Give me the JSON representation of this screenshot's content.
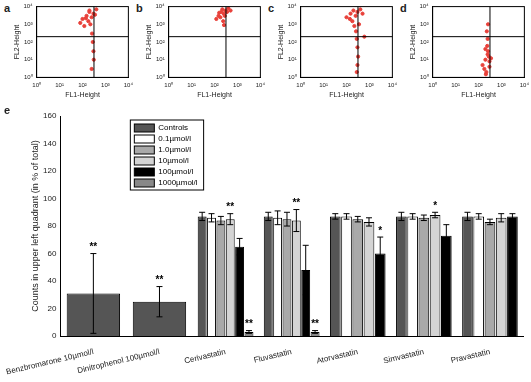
{
  "chart_data": [
    {
      "type": "scatter",
      "title": "a",
      "x_label": "FL1-Height",
      "y_label": "FL2-Height",
      "log": true,
      "grid": false,
      "color": "#e8413a",
      "xlim": [
        1,
        10000
      ],
      "ylim": [
        1,
        10000
      ],
      "xticks": [
        {
          "value": 1,
          "label": "10⁰"
        },
        {
          "value": 10,
          "label": "10¹"
        },
        {
          "value": 100,
          "label": "10²"
        },
        {
          "value": 1000,
          "label": "10³"
        },
        {
          "value": 10000,
          "label": "10⁴"
        }
      ],
      "yticks": [
        {
          "value": 1,
          "label": "10⁰"
        },
        {
          "value": 10,
          "label": "10¹"
        },
        {
          "value": 100,
          "label": "10²"
        },
        {
          "value": 1000,
          "label": "10³"
        },
        {
          "value": 10000,
          "label": "10⁴"
        }
      ],
      "gate": {
        "x": 316,
        "y": 200
      },
      "x": [
        100,
        150,
        200,
        250,
        300,
        180,
        120,
        220,
        260,
        280,
        300,
        310,
        250,
        200,
        400,
        350,
        80,
        140
      ],
      "y": [
        2000,
        3000,
        5000,
        2500,
        4000,
        1500,
        800,
        1000,
        300,
        100,
        30,
        10,
        3,
        6000,
        7000,
        3500,
        1200,
        2200
      ]
    },
    {
      "type": "scatter",
      "title": "b",
      "x_label": "FL1-Height",
      "y_label": "FL2-Height",
      "log": true,
      "grid": false,
      "color": "#e8413a",
      "xlim": [
        1,
        10000
      ],
      "ylim": [
        1,
        10000
      ],
      "xticks": [
        {
          "value": 1,
          "label": "10⁰"
        },
        {
          "value": 10,
          "label": "10¹"
        },
        {
          "value": 100,
          "label": "10²"
        },
        {
          "value": 1000,
          "label": "10³"
        },
        {
          "value": 10000,
          "label": "10⁴"
        }
      ],
      "yticks": [
        {
          "value": 1,
          "label": "10⁰"
        },
        {
          "value": 10,
          "label": "10¹"
        },
        {
          "value": 100,
          "label": "10²"
        },
        {
          "value": 1000,
          "label": "10³"
        },
        {
          "value": 10000,
          "label": "10⁴"
        }
      ],
      "gate": {
        "x": 316,
        "y": 200
      },
      "x": [
        150,
        200,
        250,
        300,
        180,
        220,
        400,
        350,
        120,
        280,
        500,
        160,
        240,
        260
      ],
      "y": [
        3000,
        5000,
        4000,
        6000,
        2500,
        7000,
        8000,
        5000,
        2000,
        3000,
        6000,
        4500,
        1500,
        900
      ]
    },
    {
      "type": "scatter",
      "title": "c",
      "x_label": "FL1-Height",
      "y_label": "FL2-Height",
      "log": true,
      "grid": false,
      "color": "#e8413a",
      "xlim": [
        1,
        10000
      ],
      "ylim": [
        1,
        10000
      ],
      "xticks": [
        {
          "value": 1,
          "label": "10⁰"
        },
        {
          "value": 10,
          "label": "10¹"
        },
        {
          "value": 100,
          "label": "10²"
        },
        {
          "value": 1000,
          "label": "10³"
        },
        {
          "value": 10000,
          "label": "10⁴"
        }
      ],
      "yticks": [
        {
          "value": 1,
          "label": "10⁰"
        },
        {
          "value": 10,
          "label": "10¹"
        },
        {
          "value": 100,
          "label": "10²"
        },
        {
          "value": 1000,
          "label": "10³"
        },
        {
          "value": 10000,
          "label": "10⁴"
        }
      ],
      "gate": {
        "x": 316,
        "y": 200
      },
      "x": [
        100,
        150,
        200,
        250,
        300,
        180,
        220,
        260,
        280,
        300,
        320,
        300,
        280,
        400,
        500,
        140,
        350,
        600
      ],
      "y": [
        2500,
        4000,
        6000,
        3000,
        5000,
        1500,
        800,
        400,
        150,
        50,
        15,
        5,
        2,
        7000,
        4000,
        2000,
        1000,
        200
      ]
    },
    {
      "type": "scatter",
      "title": "d",
      "x_label": "FL1-Height",
      "y_label": "FL2-Height",
      "log": true,
      "grid": false,
      "color": "#e8413a",
      "xlim": [
        1,
        10000
      ],
      "ylim": [
        1,
        10000
      ],
      "xticks": [
        {
          "value": 1,
          "label": "10⁰"
        },
        {
          "value": 10,
          "label": "10¹"
        },
        {
          "value": 100,
          "label": "10²"
        },
        {
          "value": 1000,
          "label": "10³"
        },
        {
          "value": 10000,
          "label": "10⁴"
        }
      ],
      "yticks": [
        {
          "value": 1,
          "label": "10⁰"
        },
        {
          "value": 10,
          "label": "10¹"
        },
        {
          "value": 100,
          "label": "10²"
        },
        {
          "value": 1000,
          "label": "10³"
        },
        {
          "value": 10000,
          "label": "10⁴"
        }
      ],
      "gate": {
        "x": 316,
        "y": 200
      },
      "x": [
        150,
        200,
        250,
        300,
        180,
        220,
        260,
        280,
        240,
        250,
        230,
        260,
        210,
        300,
        350,
        200
      ],
      "y": [
        5,
        10,
        20,
        8,
        3,
        2,
        30,
        15,
        60,
        150,
        400,
        1000,
        1.5,
        4,
        12,
        40
      ]
    },
    {
      "type": "bar",
      "title": "e",
      "y_label": "Counts in upper left quadrant (in % of total)",
      "grid": false,
      "legend": "upper left",
      "ylim": [
        0,
        160
      ],
      "yticks": [
        0,
        20,
        40,
        60,
        80,
        100,
        120,
        140,
        160
      ],
      "categories": [
        "Benzbromarone 10µmol/l",
        "Dinitrophenol 100µmol/l",
        "Cerivastatin",
        "Fluvastatin",
        "Atorvastatin",
        "Simvastatin",
        "Pravastatin"
      ],
      "series": [
        {
          "name": "Controls",
          "color": "#555555",
          "values": [
            31,
            25,
            87,
            87,
            87,
            87,
            87
          ],
          "errors": [
            29,
            11,
            3,
            3,
            2,
            3,
            3
          ],
          "significance": [
            "**",
            "**",
            null,
            null,
            null,
            null,
            null
          ]
        },
        {
          "name": "0.1µmol/l",
          "color": "#ffffff",
          "values": [
            null,
            null,
            86,
            86,
            87,
            87,
            87
          ],
          "errors": [
            null,
            null,
            3,
            5,
            2,
            2,
            2
          ],
          "significance": [
            null,
            null,
            null,
            null,
            null,
            null,
            null
          ]
        },
        {
          "name": "1.0µmol/l",
          "color": "#a9a9a9",
          "values": [
            null,
            null,
            84,
            85,
            85,
            86,
            83
          ],
          "errors": [
            null,
            null,
            3,
            5,
            2,
            2,
            2
          ],
          "significance": [
            null,
            null,
            null,
            null,
            null,
            null,
            null
          ]
        },
        {
          "name": "10µmol/l",
          "color": "#d4d4d4",
          "values": [
            null,
            null,
            85,
            84,
            83,
            88,
            86
          ],
          "errors": [
            null,
            null,
            4,
            8,
            3,
            2,
            3
          ],
          "significance": [
            null,
            null,
            "**",
            "**",
            null,
            "*",
            null
          ]
        },
        {
          "name": "100µmol/l",
          "color": "#000000",
          "values": [
            null,
            null,
            65,
            48,
            60,
            73,
            87
          ],
          "errors": [
            null,
            null,
            6,
            18,
            12,
            8,
            2
          ],
          "significance": [
            null,
            null,
            null,
            null,
            "*",
            null,
            null
          ]
        },
        {
          "name": "1000µmol/l",
          "color": "#888888",
          "values": [
            null,
            null,
            3,
            3,
            null,
            null,
            null
          ],
          "errors": [
            null,
            null,
            1,
            1,
            null,
            null,
            null
          ],
          "significance": [
            null,
            null,
            "**",
            "**",
            null,
            null,
            null
          ]
        }
      ]
    }
  ]
}
